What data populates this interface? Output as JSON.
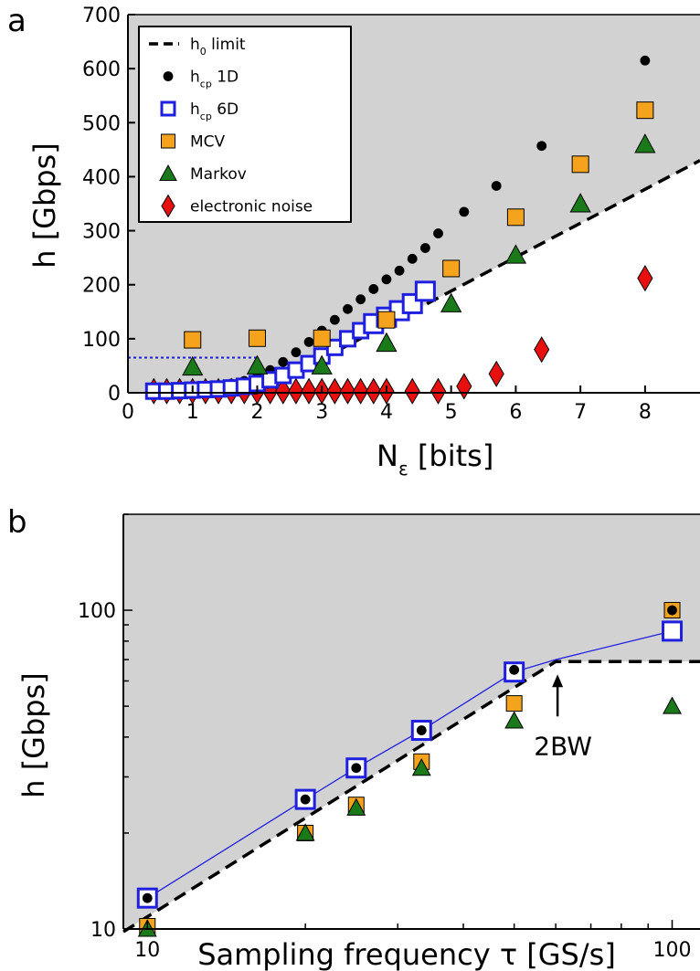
{
  "chart_data": [
    {
      "panel_label": "a",
      "type": "scatter",
      "xlabel": "N",
      "xlabel_sub": "ε",
      "xlabel_rest": " [bits]",
      "ylabel": "h [Gbps]",
      "xlim": [
        0,
        8.85
      ],
      "ylim": [
        0,
        700
      ],
      "xticks": [
        "0",
        "1",
        "2",
        "3",
        "4",
        "5",
        "6",
        "7",
        "8"
      ],
      "yticks": [
        "0",
        "100",
        "200",
        "300",
        "400",
        "500",
        "600",
        "700"
      ],
      "grid": false,
      "legend_position": "top-left",
      "legend": [
        {
          "main": "h",
          "sub": "0",
          "rest": " limit"
        },
        {
          "main": "h",
          "sub": "cp",
          "rest": " 1D"
        },
        {
          "main": "h",
          "sub": "cp",
          "rest": " 6D"
        },
        {
          "main": "MCV",
          "sub": "",
          "rest": ""
        },
        {
          "main": "Markov",
          "sub": "",
          "rest": ""
        },
        {
          "main": "electronic noise",
          "sub": "",
          "rest": ""
        }
      ],
      "series": [
        {
          "name": "h0 limit",
          "kind": "dashed-line",
          "x": [
            0.3,
            2.0,
            8.85
          ],
          "y": [
            0,
            0,
            430
          ]
        },
        {
          "name": "hcp 1D",
          "kind": "circle",
          "color": "#000000",
          "x": [
            0.4,
            0.6,
            0.8,
            1.0,
            1.2,
            1.4,
            1.6,
            1.8,
            2.0,
            2.2,
            2.4,
            2.6,
            2.8,
            3.0,
            3.2,
            3.4,
            3.6,
            3.8,
            4.0,
            4.2,
            4.4,
            4.6,
            4.8,
            5.2,
            5.7,
            6.4,
            8.0
          ],
          "y": [
            8,
            8,
            9,
            10,
            12,
            14,
            17,
            22,
            30,
            42,
            57,
            75,
            94,
            115,
            135,
            155,
            173,
            192,
            210,
            226,
            248,
            268,
            295,
            335,
            383,
            457,
            615
          ]
        },
        {
          "name": "hcp 6D",
          "kind": "open-square",
          "color": "#1f1fe0",
          "x": [
            0.4,
            0.6,
            0.8,
            1.0,
            1.2,
            1.4,
            1.6,
            1.8,
            2.0,
            2.2,
            2.4,
            2.6,
            2.8,
            3.0,
            3.2,
            3.4,
            3.6,
            3.8,
            4.0,
            4.2,
            4.4,
            4.6
          ],
          "y": [
            3,
            3,
            4,
            5,
            6,
            7,
            9,
            12,
            17,
            24,
            32,
            42,
            54,
            68,
            84,
            100,
            115,
            128,
            140,
            152,
            165,
            188
          ]
        },
        {
          "name": "MCV",
          "kind": "square",
          "color": "#f5a31c",
          "x": [
            1,
            2,
            3,
            4,
            5,
            6,
            7,
            8
          ],
          "y": [
            98,
            101,
            101,
            135,
            230,
            325,
            423,
            523
          ]
        },
        {
          "name": "Markov",
          "kind": "triangle",
          "color": "#1a7a1a",
          "x": [
            1,
            2,
            3,
            4,
            5,
            6,
            7,
            8
          ],
          "y": [
            48,
            50,
            50,
            92,
            165,
            255,
            350,
            460
          ]
        },
        {
          "name": "electronic noise",
          "kind": "diamond",
          "color": "#e8100f",
          "x": [
            0.4,
            0.6,
            0.8,
            1.0,
            1.2,
            1.4,
            1.6,
            1.8,
            2.0,
            2.2,
            2.4,
            2.6,
            2.8,
            3.0,
            3.2,
            3.4,
            3.6,
            3.8,
            4.0,
            4.4,
            4.8,
            5.2,
            5.7,
            6.4,
            8.0
          ],
          "y": [
            3,
            3,
            3,
            3,
            3,
            3,
            3,
            3,
            3,
            3,
            3,
            3,
            3,
            3,
            3,
            3,
            3,
            3,
            3,
            3,
            3,
            12,
            35,
            80,
            212
          ]
        }
      ],
      "reference_line": {
        "style": "blue dotted",
        "y": 65,
        "x": [
          0,
          2.0
        ]
      }
    },
    {
      "panel_label": "b",
      "type": "scatter",
      "xlabel": "Sampling frequency τ [GS/s]",
      "ylabel": "h [Gbps]",
      "xscale": "log",
      "yscale": "log",
      "xlim": [
        9,
        113
      ],
      "ylim": [
        10,
        200
      ],
      "xticks": [
        "10",
        "100"
      ],
      "yticks": [
        "10",
        "100"
      ],
      "grid": false,
      "annotation": "2BW",
      "annotation_x": 60,
      "series": [
        {
          "name": "h0 limit",
          "kind": "dashed-line",
          "x": [
            9,
            60,
            113
          ],
          "y": [
            9.8,
            69,
            69
          ]
        },
        {
          "name": "hcp 6D line",
          "kind": "thin-line",
          "color": "#1f1fe0",
          "x": [
            10,
            20,
            25,
            33.3,
            50,
            60,
            100
          ],
          "y": [
            12.5,
            25.5,
            32,
            42,
            64,
            70,
            86
          ]
        },
        {
          "name": "hcp 6D",
          "kind": "open-square",
          "color": "#1f1fe0",
          "x": [
            10,
            20,
            25,
            33.3,
            50,
            100
          ],
          "y": [
            12.5,
            25.5,
            32,
            42,
            64,
            86
          ]
        },
        {
          "name": "hcp 1D",
          "kind": "circle",
          "color": "#000000",
          "x": [
            10,
            20,
            25,
            33.3,
            50,
            100
          ],
          "y": [
            12.5,
            25.5,
            32,
            42,
            65,
            100
          ]
        },
        {
          "name": "MCV",
          "kind": "square",
          "color": "#f5a31c",
          "x": [
            10,
            20,
            25,
            33.3,
            50,
            100
          ],
          "y": [
            10.2,
            20,
            24.5,
            33.5,
            51,
            100
          ]
        },
        {
          "name": "Markov",
          "kind": "triangle",
          "color": "#1a7a1a",
          "x": [
            10,
            20,
            25,
            33.3,
            50,
            100
          ],
          "y": [
            10,
            20,
            24,
            32,
            45,
            50
          ]
        }
      ]
    }
  ]
}
